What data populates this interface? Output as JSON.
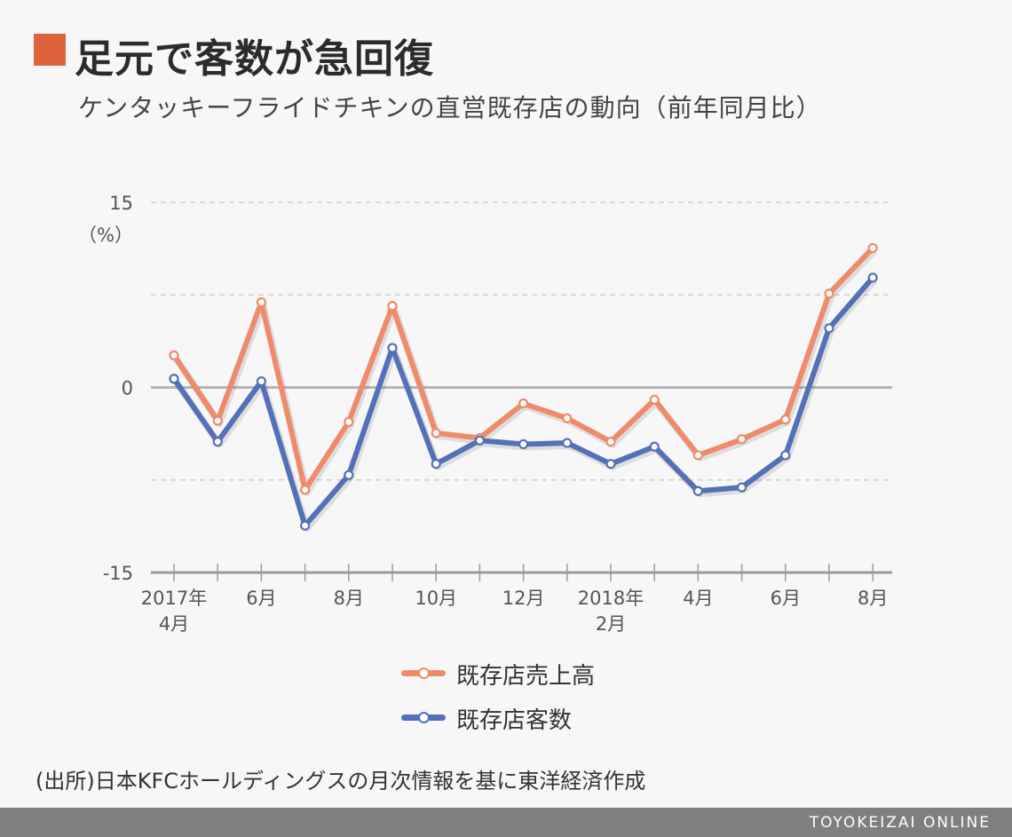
{
  "title": "足元で客数が急回復",
  "subtitle": "ケンタッキーフライドチキンの直営既存店の動向（前年同月比）",
  "chart_data": {
    "type": "line",
    "unit_label": "（%）",
    "ylim": [
      -15,
      15
    ],
    "yticks": [
      "15",
      "0",
      "-15"
    ],
    "x_tick_labels": [
      {
        "index": 0,
        "line1": "2017年",
        "line2": "4月"
      },
      {
        "index": 2,
        "line1": "6月",
        "line2": ""
      },
      {
        "index": 4,
        "line1": "8月",
        "line2": ""
      },
      {
        "index": 6,
        "line1": "10月",
        "line2": ""
      },
      {
        "index": 8,
        "line1": "12月",
        "line2": ""
      },
      {
        "index": 10,
        "line1": "2018年",
        "line2": "2月"
      },
      {
        "index": 12,
        "line1": "4月",
        "line2": ""
      },
      {
        "index": 14,
        "line1": "6月",
        "line2": ""
      },
      {
        "index": 16,
        "line1": "8月",
        "line2": ""
      }
    ],
    "categories": [
      "2017-04",
      "2017-05",
      "2017-06",
      "2017-07",
      "2017-08",
      "2017-09",
      "2017-10",
      "2017-11",
      "2017-12",
      "2018-01",
      "2018-02",
      "2018-03",
      "2018-04",
      "2018-05",
      "2018-06",
      "2018-07",
      "2018-08"
    ],
    "series": [
      {
        "name": "既存店売上高",
        "color": "#ef8a6a",
        "values": [
          2.6,
          -2.7,
          6.9,
          -8.3,
          -2.8,
          6.6,
          -3.7,
          -4.1,
          -1.3,
          -2.5,
          -4.4,
          -1.0,
          -5.5,
          -4.2,
          -2.6,
          7.6,
          11.3
        ]
      },
      {
        "name": "既存店客数",
        "color": "#5470b8",
        "values": [
          0.7,
          -4.4,
          0.5,
          -11.2,
          -7.1,
          3.2,
          -6.2,
          -4.3,
          -4.6,
          -4.5,
          -6.2,
          -4.8,
          -8.4,
          -8.1,
          -5.5,
          4.8,
          8.9
        ]
      }
    ]
  },
  "source": "(出所)日本KFCホールディングスの月次情報を基に東洋経済作成",
  "footer_brand": "TOYOKEIZAI ONLINE"
}
